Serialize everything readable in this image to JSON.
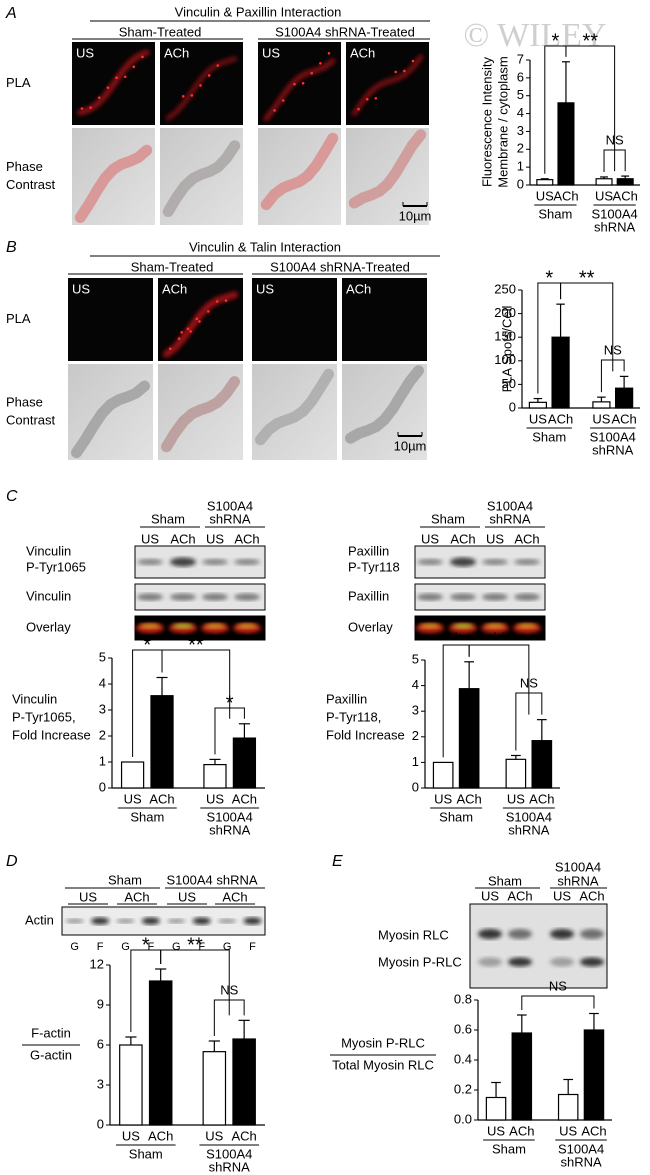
{
  "watermark": "© WILEY",
  "panels": {
    "A": {
      "label": "A",
      "title": "Vinculin & Paxillin Interaction",
      "groups": [
        "Sham-Treated",
        "S100A4 shRNA-Treated"
      ],
      "columns": [
        "US",
        "ACh",
        "US",
        "ACh"
      ],
      "rows": [
        [
          "PLA"
        ],
        [
          "Phase",
          "Contrast"
        ]
      ],
      "scale_bar": "10µm"
    },
    "B": {
      "label": "B",
      "title": "Vinculin & Talin Interaction",
      "groups": [
        "Sham-Treated",
        "S100A4 shRNA-Treated"
      ],
      "columns": [
        "US",
        "ACh",
        "US",
        "ACh"
      ],
      "rows": [
        [
          "PLA"
        ],
        [
          "Phase",
          "Contrast"
        ]
      ],
      "scale_bar": "10µm"
    },
    "C": {
      "label": "C",
      "blots": [
        {
          "groups": [
            [
              "Sham"
            ],
            [
              "S100A4",
              "shRNA"
            ]
          ],
          "columns": [
            "US",
            "ACh",
            "US",
            "ACh"
          ],
          "rows": [
            [
              "Vinculin",
              "P-Tyr1065"
            ],
            [
              "Vinculin"
            ],
            [
              "Overlay"
            ]
          ]
        },
        {
          "groups": [
            [
              "Sham"
            ],
            [
              "S100A4",
              "shRNA"
            ]
          ],
          "columns": [
            "US",
            "ACh",
            "US",
            "ACh"
          ],
          "rows": [
            [
              "Paxillin",
              "P-Tyr118"
            ],
            [
              "Paxillin"
            ],
            [
              "Overlay"
            ]
          ]
        }
      ]
    },
    "D": {
      "label": "D",
      "groups": [
        "Sham",
        "S100A4 shRNA"
      ],
      "columns": [
        "US",
        "ACh",
        "US",
        "ACh"
      ],
      "rows": [
        "Actin"
      ],
      "lanes": [
        "G",
        "F",
        "G",
        "F",
        "G",
        "F",
        "G",
        "F"
      ]
    },
    "E": {
      "label": "E",
      "groups": [
        [
          "Sham"
        ],
        [
          "S100A4",
          "shRNA"
        ]
      ],
      "columns": [
        "US",
        "ACh",
        "US",
        "ACh"
      ],
      "rows": [
        "Myosin RLC",
        "Myosin P-RLC"
      ]
    }
  },
  "chart_data": [
    {
      "type": "bar",
      "ylabel": [
        "Fluorescence Intensity",
        "Membrane / cytoplasm"
      ],
      "categories": [
        "US",
        "ACh",
        "US",
        "ACh"
      ],
      "groups": [
        [
          "Sham"
        ],
        [
          "S100A4",
          "shRNA"
        ]
      ],
      "values": [
        0.3,
        4.6,
        0.35,
        0.35
      ],
      "errors": [
        0.05,
        2.3,
        0.1,
        0.15
      ],
      "colors": [
        "#ffffff",
        "#000000",
        "#ffffff",
        "#000000"
      ],
      "ylim": [
        0,
        7
      ],
      "yticks": [
        0,
        1,
        2,
        3,
        4,
        5,
        6,
        7
      ],
      "annotations": [
        "*",
        "**",
        "NS"
      ]
    },
    {
      "type": "bar",
      "ylabel": [
        "PLA Spots/Cell"
      ],
      "categories": [
        "US",
        "ACh",
        "US",
        "ACh"
      ],
      "groups": [
        [
          "Sham"
        ],
        [
          "S100A4",
          "shRNA"
        ]
      ],
      "values": [
        12,
        150,
        13,
        42
      ],
      "errors": [
        8,
        70,
        10,
        25
      ],
      "colors": [
        "#ffffff",
        "#000000",
        "#ffffff",
        "#000000"
      ],
      "ylim": [
        0,
        250
      ],
      "yticks": [
        0,
        50,
        100,
        150,
        200,
        250
      ],
      "annotations": [
        "*",
        "**",
        "NS"
      ]
    },
    {
      "type": "bar",
      "ylabel": [
        "Vinculin",
        "P-Tyr1065,",
        "Fold Increase"
      ],
      "categories": [
        "US",
        "ACh",
        "US",
        "ACh"
      ],
      "groups": [
        [
          "Sham"
        ],
        [
          "S100A4",
          "shRNA"
        ]
      ],
      "values": [
        1,
        3.55,
        0.9,
        1.92
      ],
      "errors": [
        0,
        0.7,
        0.2,
        0.55
      ],
      "colors": [
        "#ffffff",
        "#000000",
        "#ffffff",
        "#000000"
      ],
      "ylim": [
        0,
        5
      ],
      "yticks": [
        0,
        1,
        2,
        3,
        4,
        5
      ],
      "annotations": [
        "*",
        "**",
        "*"
      ]
    },
    {
      "type": "bar",
      "ylabel": [
        "Paxillin",
        "P-Tyr118,",
        "Fold Increase"
      ],
      "categories": [
        "US",
        "ACh",
        "US",
        "ACh"
      ],
      "groups": [
        [
          "Sham"
        ],
        [
          "S100A4",
          "shRNA"
        ]
      ],
      "values": [
        1,
        3.88,
        1.12,
        1.85
      ],
      "errors": [
        0,
        1.05,
        0.15,
        0.82
      ],
      "colors": [
        "#ffffff",
        "#000000",
        "#ffffff",
        "#000000"
      ],
      "ylim": [
        0,
        5
      ],
      "yticks": [
        0,
        1,
        2,
        3,
        4,
        5
      ],
      "annotations": [
        "*",
        "**",
        "NS"
      ]
    },
    {
      "type": "bar",
      "ylabel": [
        "F-actin",
        "G-actin"
      ],
      "categories": [
        "US",
        "ACh",
        "US",
        "ACh"
      ],
      "groups": [
        [
          "Sham"
        ],
        [
          "S100A4",
          "shRNA"
        ]
      ],
      "values": [
        6,
        10.8,
        5.5,
        6.45
      ],
      "errors": [
        0.6,
        0.9,
        0.8,
        1.4
      ],
      "colors": [
        "#ffffff",
        "#000000",
        "#ffffff",
        "#000000"
      ],
      "ylim": [
        0,
        12
      ],
      "yticks": [
        0,
        3,
        6,
        9,
        12
      ],
      "annotations": [
        "*",
        "**",
        "NS"
      ]
    },
    {
      "type": "bar",
      "ylabel": [
        "Myosin P-RLC",
        "Total Myosin RLC"
      ],
      "categories": [
        "US",
        "ACh",
        "US",
        "ACh"
      ],
      "groups": [
        [
          "Sham"
        ],
        [
          "S100A4",
          "shRNA"
        ]
      ],
      "values": [
        0.15,
        0.58,
        0.17,
        0.6
      ],
      "errors": [
        0.1,
        0.12,
        0.1,
        0.11
      ],
      "colors": [
        "#ffffff",
        "#000000",
        "#ffffff",
        "#000000"
      ],
      "ylim": [
        0,
        0.8
      ],
      "yticks": [
        {
          "value": 0,
          "label": "0.0"
        },
        0.2,
        0.4,
        0.6,
        0.8
      ],
      "annotations": [
        "NS"
      ]
    }
  ]
}
